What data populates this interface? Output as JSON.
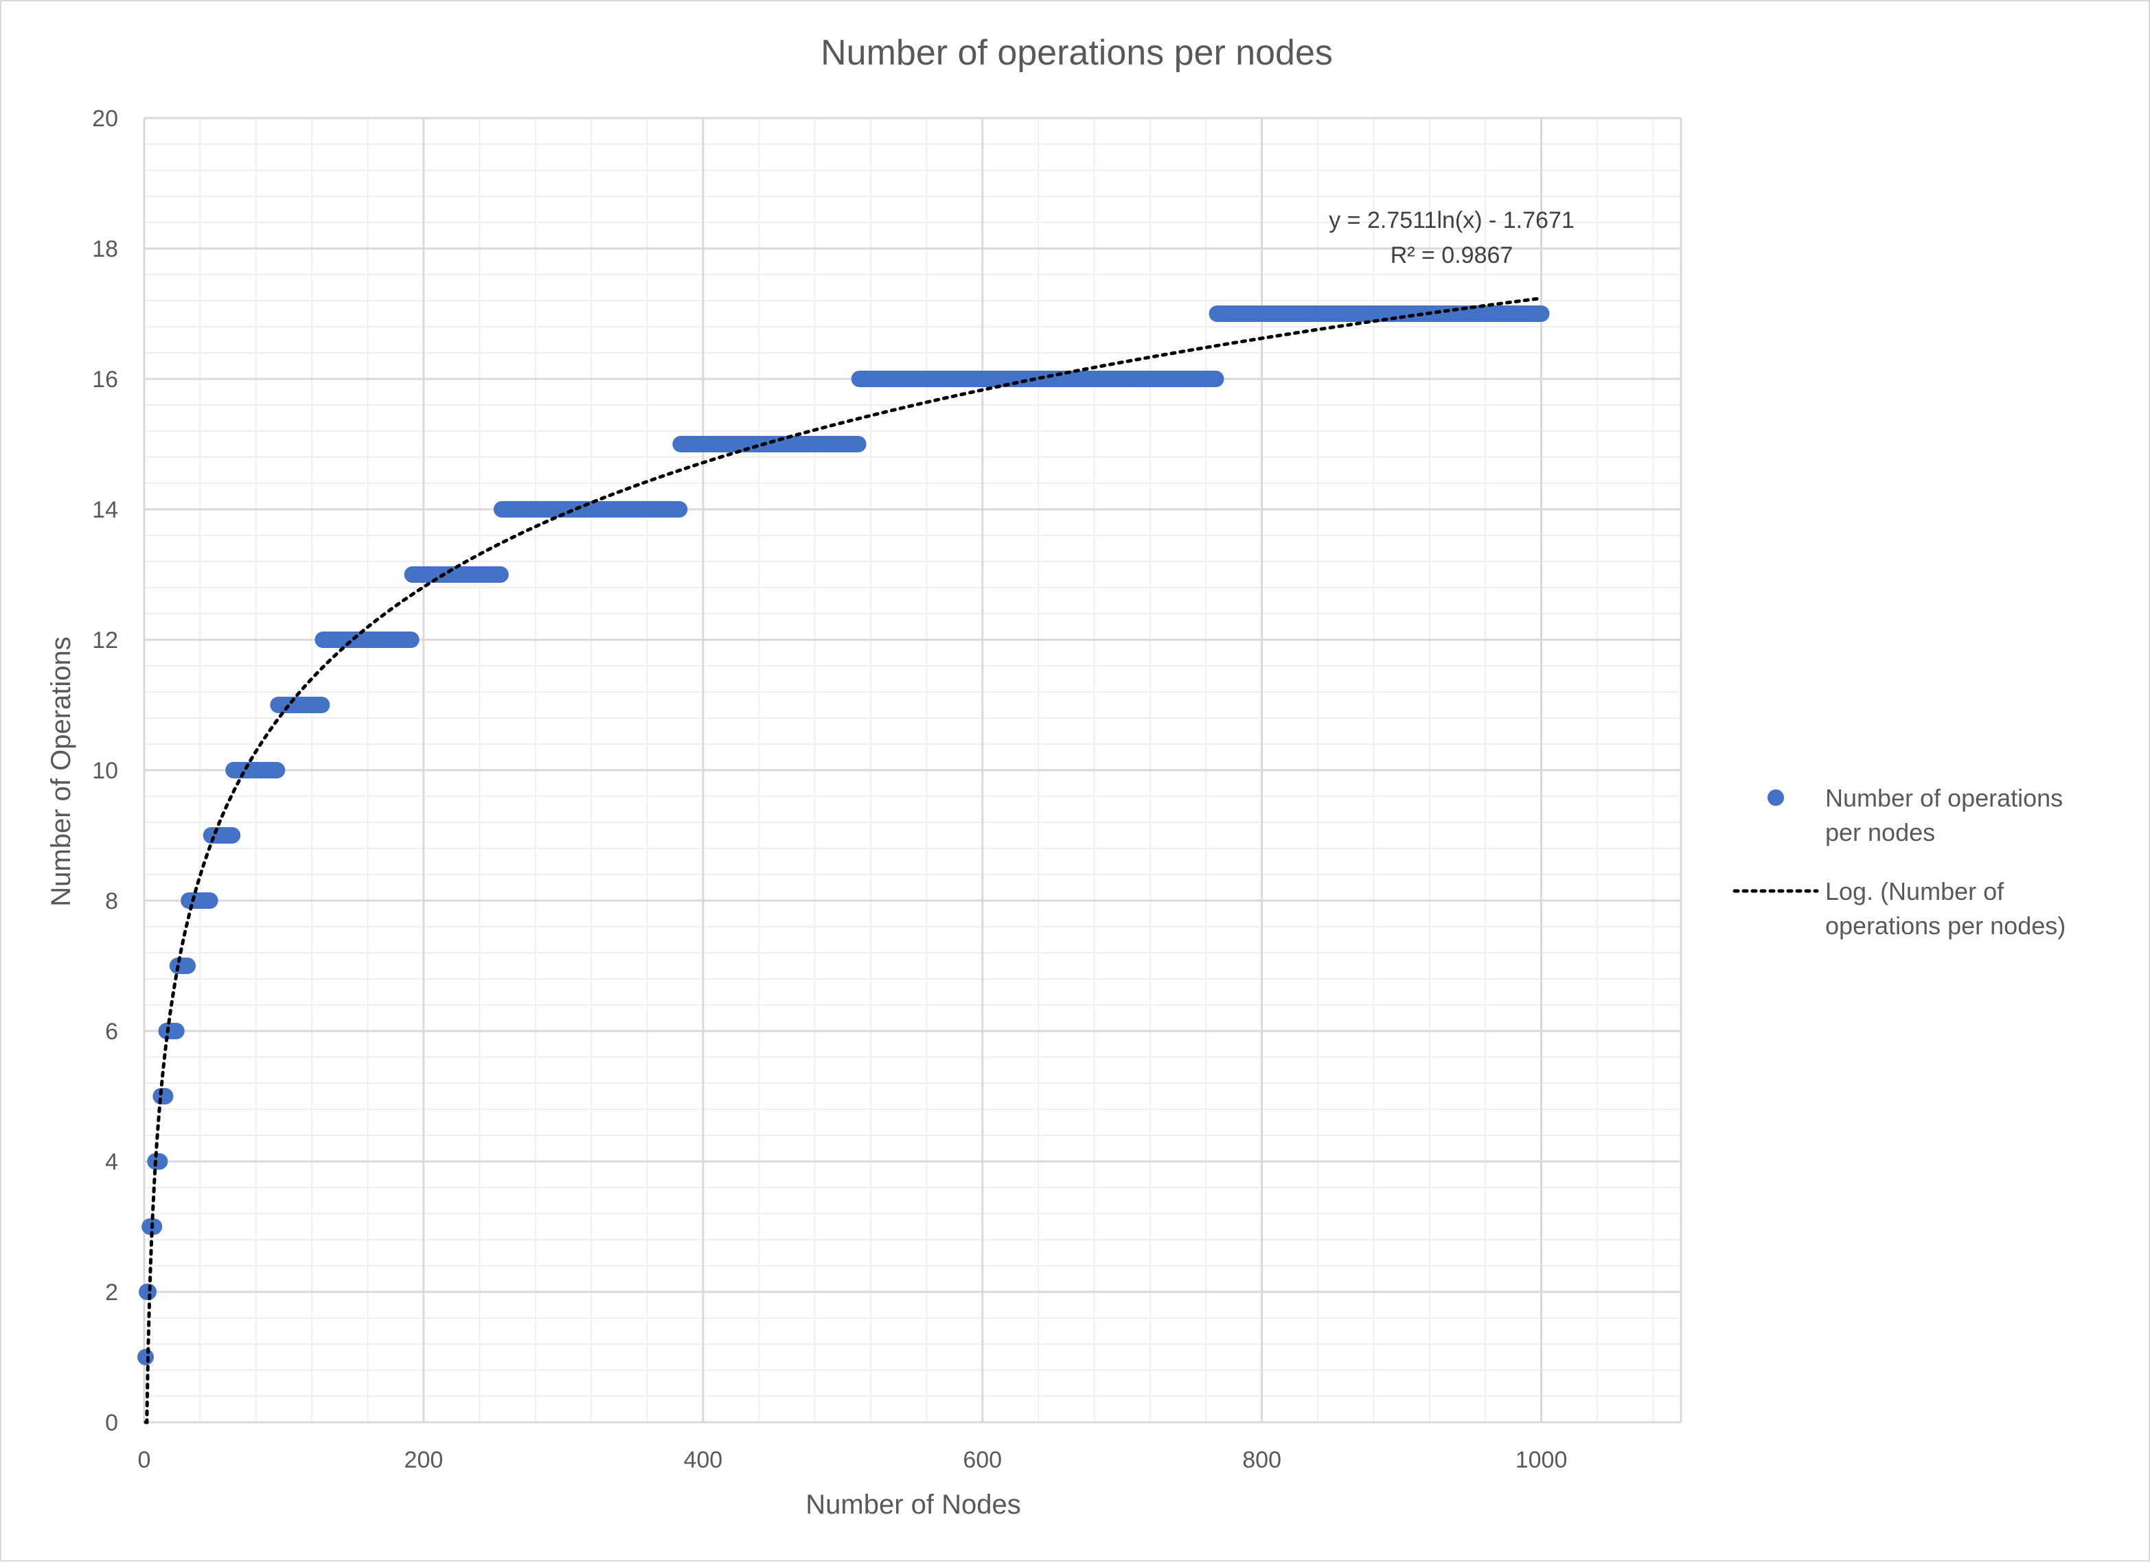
{
  "chart_data": {
    "type": "scatter",
    "title": "Number of operations per nodes",
    "xlabel": "Number of Nodes",
    "ylabel": "Number of Operations",
    "xlim": [
      0,
      1100
    ],
    "ylim": [
      0,
      20
    ],
    "x_ticks": [
      0,
      200,
      400,
      600,
      800,
      1000
    ],
    "y_ticks": [
      0,
      2,
      4,
      6,
      8,
      10,
      12,
      14,
      16,
      18,
      20
    ],
    "x_minor_step": 40,
    "y_minor_step": 0.4,
    "grid": true,
    "colors": {
      "series": "#4472C4",
      "trendline": "#000000",
      "grid_major": "#d9d9d9",
      "grid_minor": "#f0f0f0",
      "text": "#595959"
    },
    "series": [
      {
        "name": "Number of operations per nodes",
        "marker": "circle",
        "segments": [
          {
            "y": 1,
            "x_from": 1,
            "x_to": 1
          },
          {
            "y": 2,
            "x_from": 2,
            "x_to": 3
          },
          {
            "y": 3,
            "x_from": 4,
            "x_to": 7
          },
          {
            "y": 4,
            "x_from": 8,
            "x_to": 11
          },
          {
            "y": 5,
            "x_from": 12,
            "x_to": 15
          },
          {
            "y": 6,
            "x_from": 16,
            "x_to": 23
          },
          {
            "y": 7,
            "x_from": 24,
            "x_to": 31
          },
          {
            "y": 8,
            "x_from": 32,
            "x_to": 47
          },
          {
            "y": 9,
            "x_from": 48,
            "x_to": 63
          },
          {
            "y": 10,
            "x_from": 64,
            "x_to": 95
          },
          {
            "y": 11,
            "x_from": 96,
            "x_to": 127
          },
          {
            "y": 12,
            "x_from": 128,
            "x_to": 191
          },
          {
            "y": 13,
            "x_from": 192,
            "x_to": 255
          },
          {
            "y": 14,
            "x_from": 256,
            "x_to": 383
          },
          {
            "y": 15,
            "x_from": 384,
            "x_to": 511
          },
          {
            "y": 16,
            "x_from": 512,
            "x_to": 767
          },
          {
            "y": 17,
            "x_from": 768,
            "x_to": 1000
          }
        ]
      }
    ],
    "trendline": {
      "name": "Log. (Number of operations per nodes)",
      "type": "logarithmic",
      "a": 2.7511,
      "b": -1.7671,
      "x_range": [
        1,
        1000
      ],
      "equation": "y = 2.7511ln(x) - 1.7671",
      "r2": "R² = 0.9867"
    },
    "legend": {
      "position": "right",
      "series_lines": [
        "Number of operations",
        "per nodes"
      ],
      "trend_lines": [
        "Log. (Number of",
        "operations per nodes)"
      ]
    }
  }
}
